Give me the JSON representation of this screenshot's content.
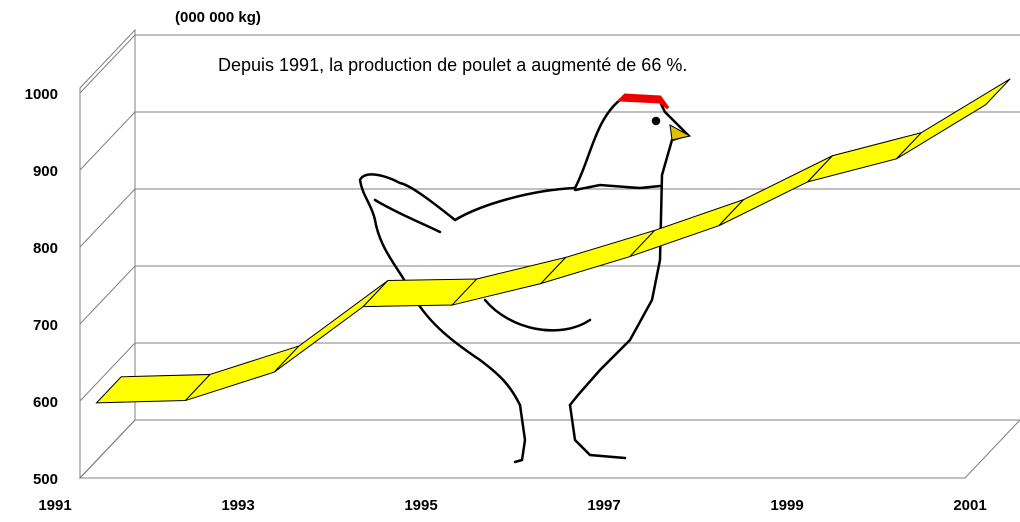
{
  "chart_data": {
    "type": "ribbon3d",
    "y_label": "(000 000 kg)",
    "annotation": "Depuis 1991, la production de poulet a augmenté de 66 %.",
    "categories": [
      "1991",
      null,
      "1993",
      null,
      "1995",
      null,
      "1997",
      null,
      "1999",
      null,
      "2001"
    ],
    "values": [
      575,
      578,
      615,
      700,
      702,
      730,
      765,
      805,
      862,
      892,
      962
    ],
    "color": "#ffff00",
    "ylim": [
      500,
      1000
    ],
    "yticks": [
      500,
      600,
      700,
      800,
      900,
      1000
    ],
    "grid": true
  }
}
